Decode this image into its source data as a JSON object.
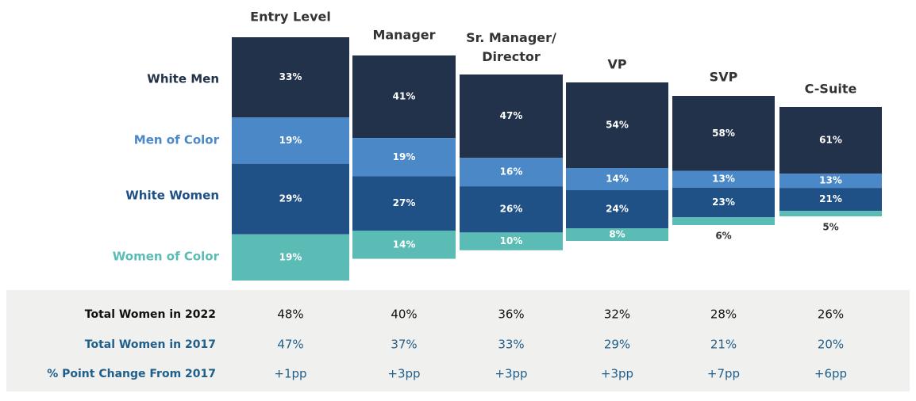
{
  "chart_data": {
    "type": "bar",
    "stacked": true,
    "categories": [
      "Entry Level",
      "Manager",
      "Sr. Manager/Director",
      "VP",
      "SVP",
      "C-Suite"
    ],
    "series": [
      {
        "name": "White Men",
        "color": "#22324a",
        "values": [
          33,
          41,
          47,
          54,
          58,
          61
        ],
        "value_labels": [
          "33%",
          "41%",
          "47%",
          "54%",
          "58%",
          "61%"
        ]
      },
      {
        "name": "Men of Color",
        "color": "#4a88c8",
        "values": [
          19,
          19,
          16,
          14,
          13,
          13
        ],
        "value_labels": [
          "19%",
          "19%",
          "16%",
          "14%",
          "13%",
          "13%"
        ]
      },
      {
        "name": "White Women",
        "color": "#1f5086",
        "values": [
          29,
          27,
          26,
          24,
          23,
          21
        ],
        "value_labels": [
          "29%",
          "27%",
          "26%",
          "24%",
          "23%",
          "21%"
        ]
      },
      {
        "name": "Women of Color",
        "color": "#5bbcb6",
        "values": [
          19,
          14,
          10,
          8,
          6,
          5
        ],
        "value_labels": [
          "19%",
          "14%",
          "10%",
          "8%",
          "6%",
          "5%"
        ]
      }
    ]
  },
  "table": {
    "rows": [
      {
        "label": "Total Women in 2022",
        "cells": [
          "48%",
          "40%",
          "36%",
          "32%",
          "28%",
          "26%"
        ]
      },
      {
        "label": "Total Women in 2017",
        "cells": [
          "47%",
          "37%",
          "33%",
          "29%",
          "21%",
          "20%"
        ]
      },
      {
        "label": "% Point Change From 2017",
        "cells": [
          "+1pp",
          "+3pp",
          "+3pp",
          "+3pp",
          "+7pp",
          "+6pp"
        ]
      }
    ]
  }
}
